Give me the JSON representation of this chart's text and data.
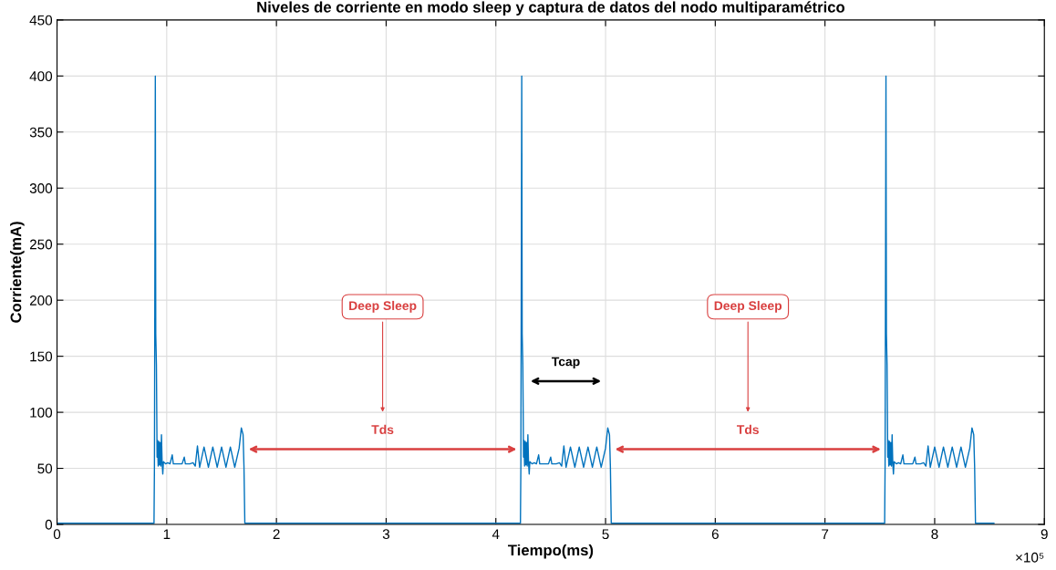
{
  "chart_data": {
    "type": "line",
    "title": "Niveles de corriente en modo sleep y captura de datos del nodo multiparamétrico",
    "xlabel": "Tiempo(ms)",
    "ylabel": "Corriente(mA)",
    "series": [
      {
        "color": "#0072bd",
        "x": [
          0,
          0.884,
          0.888,
          0.896,
          0.9,
          0.906,
          0.912,
          0.916,
          0.922,
          0.928,
          0.934,
          0.94,
          0.946,
          0.952,
          0.958,
          0.964,
          0.97,
          0.99,
          1.01,
          1.03,
          1.05,
          1.06,
          1.1,
          1.14,
          1.16,
          1.17,
          1.21,
          1.24,
          1.26,
          1.28,
          1.3,
          1.34,
          1.38,
          1.42,
          1.46,
          1.5,
          1.54,
          1.58,
          1.62,
          1.66,
          1.68,
          1.696,
          1.704,
          1.712,
          4.224,
          4.228,
          4.236,
          4.24,
          4.246,
          4.252,
          4.256,
          4.262,
          4.268,
          4.274,
          4.28,
          4.286,
          4.292,
          4.298,
          4.304,
          4.31,
          4.33,
          4.35,
          4.37,
          4.39,
          4.4,
          4.44,
          4.48,
          4.5,
          4.51,
          4.55,
          4.58,
          4.6,
          4.62,
          4.64,
          4.68,
          4.72,
          4.76,
          4.8,
          4.84,
          4.88,
          4.92,
          4.96,
          5.0,
          5.02,
          5.036,
          5.044,
          5.052,
          7.544,
          7.548,
          7.556,
          7.56,
          7.566,
          7.572,
          7.576,
          7.582,
          7.588,
          7.594,
          7.6,
          7.606,
          7.612,
          7.618,
          7.624,
          7.63,
          7.65,
          7.67,
          7.69,
          7.71,
          7.72,
          7.76,
          7.8,
          7.82,
          7.83,
          7.87,
          7.9,
          7.92,
          7.94,
          7.96,
          8.0,
          8.04,
          8.08,
          8.12,
          8.16,
          8.2,
          8.24,
          8.28,
          8.32,
          8.34,
          8.356,
          8.364,
          8.372,
          8.54
        ],
        "values": [
          1,
          1,
          52,
          400,
          170,
          142,
          60,
          75,
          52,
          74,
          53,
          73,
          52,
          80,
          55,
          45,
          56,
          54,
          55,
          54,
          62,
          54,
          54,
          54,
          60,
          54,
          54,
          55,
          52,
          70,
          51,
          69,
          51,
          69,
          51,
          69,
          51,
          69,
          51,
          68,
          86,
          80,
          52,
          1,
          1,
          52,
          400,
          170,
          142,
          60,
          75,
          52,
          74,
          53,
          73,
          52,
          80,
          55,
          45,
          56,
          54,
          55,
          54,
          62,
          54,
          54,
          54,
          60,
          54,
          54,
          55,
          52,
          70,
          51,
          69,
          51,
          69,
          51,
          69,
          51,
          69,
          51,
          68,
          86,
          80,
          52,
          1,
          1,
          52,
          400,
          170,
          142,
          60,
          75,
          52,
          74,
          53,
          73,
          52,
          80,
          55,
          45,
          56,
          54,
          55,
          54,
          62,
          54,
          54,
          54,
          60,
          54,
          54,
          55,
          52,
          70,
          51,
          69,
          51,
          69,
          51,
          69,
          51,
          69,
          51,
          68,
          86,
          80,
          52,
          1,
          1
        ]
      }
    ],
    "xlim": [
      0,
      9
    ],
    "xticks": [
      0,
      1,
      2,
      3,
      4,
      5,
      6,
      7,
      8,
      9
    ],
    "ylim": [
      0,
      450
    ],
    "yticks": [
      0,
      50,
      100,
      150,
      200,
      250,
      300,
      350,
      400,
      450
    ],
    "grid": true,
    "marker": "none",
    "line_style": "solid",
    "annotations": [
      "Deep Sleep",
      "Deep Sleep",
      "Tds",
      "Tcap",
      "Tds",
      "×10⁵"
    ]
  }
}
